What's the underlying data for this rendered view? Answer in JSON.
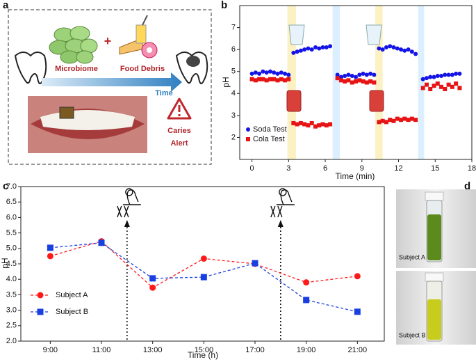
{
  "chart_data": [
    {
      "type": "scatter",
      "panel_label": "b",
      "xlabel": "Time (min)",
      "ylabel": "pH",
      "xlim": [
        -1,
        18
      ],
      "ylim": [
        1,
        8
      ],
      "xticks": [
        0,
        3,
        6,
        9,
        12,
        15,
        18
      ],
      "yticks": [
        2,
        3,
        4,
        5,
        6,
        7
      ],
      "legend": "lower-left",
      "shaded_regions": [
        {
          "x": [
            2.9,
            3.6
          ],
          "color": "#fbf1c2"
        },
        {
          "x": [
            6.6,
            7.2
          ],
          "color": "#dcefff"
        },
        {
          "x": [
            10.1,
            10.7
          ],
          "color": "#fbf1c2"
        },
        {
          "x": [
            13.6,
            14.1
          ],
          "color": "#dcefff"
        }
      ],
      "x": [
        0,
        0.3,
        0.6,
        0.9,
        1.2,
        1.5,
        1.8,
        2.1,
        2.4,
        2.7,
        3.0,
        3.4,
        3.7,
        4.0,
        4.3,
        4.6,
        4.9,
        5.2,
        5.5,
        5.8,
        6.1,
        6.4,
        7.0,
        7.3,
        7.6,
        7.9,
        8.2,
        8.5,
        8.8,
        9.1,
        9.4,
        9.7,
        10.0,
        10.4,
        10.7,
        11.0,
        11.3,
        11.6,
        11.9,
        12.2,
        12.5,
        12.8,
        13.1,
        13.4,
        14.0,
        14.3,
        14.6,
        14.9,
        15.2,
        15.5,
        15.8,
        16.1,
        16.4,
        16.7,
        17.0
      ],
      "series": [
        {
          "name": "Soda Test",
          "color": "#1414e6",
          "marker": "circle",
          "values": [
            4.9,
            4.95,
            4.9,
            5.0,
            4.95,
            5.0,
            4.95,
            4.9,
            4.95,
            4.9,
            4.85,
            5.85,
            5.9,
            5.95,
            6.0,
            6.05,
            6.0,
            6.1,
            6.05,
            6.1,
            6.1,
            6.15,
            4.85,
            4.75,
            4.8,
            4.85,
            4.8,
            4.75,
            4.85,
            4.9,
            4.85,
            4.9,
            4.85,
            6.05,
            6.0,
            6.1,
            6.15,
            6.1,
            6.05,
            6.0,
            5.95,
            6.0,
            5.9,
            5.8,
            4.65,
            4.7,
            4.75,
            4.75,
            4.8,
            4.8,
            4.85,
            4.85,
            4.85,
            4.9,
            4.9
          ]
        },
        {
          "name": "Cola Test",
          "color": "#e61414",
          "marker": "square",
          "values": [
            4.65,
            4.6,
            4.65,
            4.65,
            4.6,
            4.65,
            4.65,
            4.6,
            4.65,
            4.6,
            4.65,
            2.65,
            2.6,
            2.65,
            2.6,
            2.55,
            2.65,
            2.5,
            2.55,
            2.6,
            2.55,
            2.6,
            4.7,
            4.6,
            4.55,
            4.6,
            4.5,
            4.55,
            4.6,
            4.55,
            4.5,
            4.55,
            4.5,
            2.7,
            2.75,
            2.7,
            2.8,
            2.75,
            2.85,
            2.8,
            2.85,
            2.8,
            2.85,
            2.8,
            4.25,
            4.4,
            4.2,
            4.35,
            4.45,
            4.3,
            4.2,
            4.4,
            4.3,
            4.45,
            4.25
          ]
        }
      ]
    },
    {
      "type": "line",
      "panel_label": "c",
      "xlabel": "Time (h)",
      "ylabel": "pH",
      "xlim": [
        7.85,
        22.05
      ],
      "ylim": [
        2,
        7
      ],
      "xticks": [
        {
          "value": 9,
          "label": "9:00"
        },
        {
          "value": 11,
          "label": "11:00"
        },
        {
          "value": 13,
          "label": "13:00"
        },
        {
          "value": 15,
          "label": "15:00"
        },
        {
          "value": 17,
          "label": "17:00"
        },
        {
          "value": 19,
          "label": "19:00"
        },
        {
          "value": 21,
          "label": "21:00"
        }
      ],
      "yticks": [
        {
          "value": 2,
          "label": "2.0"
        },
        2.5,
        {
          "value": 3,
          "label": "3.0"
        },
        3.5,
        {
          "value": 4,
          "label": "4.0"
        },
        4.5,
        {
          "value": 5,
          "label": "5.0"
        },
        5.5,
        {
          "value": 6,
          "label": "6.0"
        },
        6.5,
        {
          "value": 7,
          "label": "7.0"
        }
      ],
      "legend": "lower-left",
      "linestyle": "dashed",
      "meal_times": [
        12,
        18
      ],
      "x": [
        9,
        11,
        13,
        15,
        17,
        19,
        21
      ],
      "series": [
        {
          "name": "Subject A",
          "color": "#ff1a1a",
          "marker": "circle",
          "values": [
            4.75,
            5.23,
            3.73,
            4.67,
            4.5,
            3.9,
            4.1
          ]
        },
        {
          "name": "Subject B",
          "color": "#1a3fe0",
          "marker": "square",
          "values": [
            5.02,
            5.18,
            4.03,
            4.07,
            4.52,
            3.33,
            2.95
          ]
        }
      ]
    }
  ],
  "diagram_a": {
    "panel_label": "a",
    "microbiome": "Microbiome",
    "plus": "+",
    "food": "Food Debris",
    "time": "Time",
    "alert": [
      "Caries",
      "Alert"
    ]
  },
  "photo_d": {
    "panel_label": "d",
    "labels": [
      "Subject A",
      "Subject B"
    ]
  }
}
